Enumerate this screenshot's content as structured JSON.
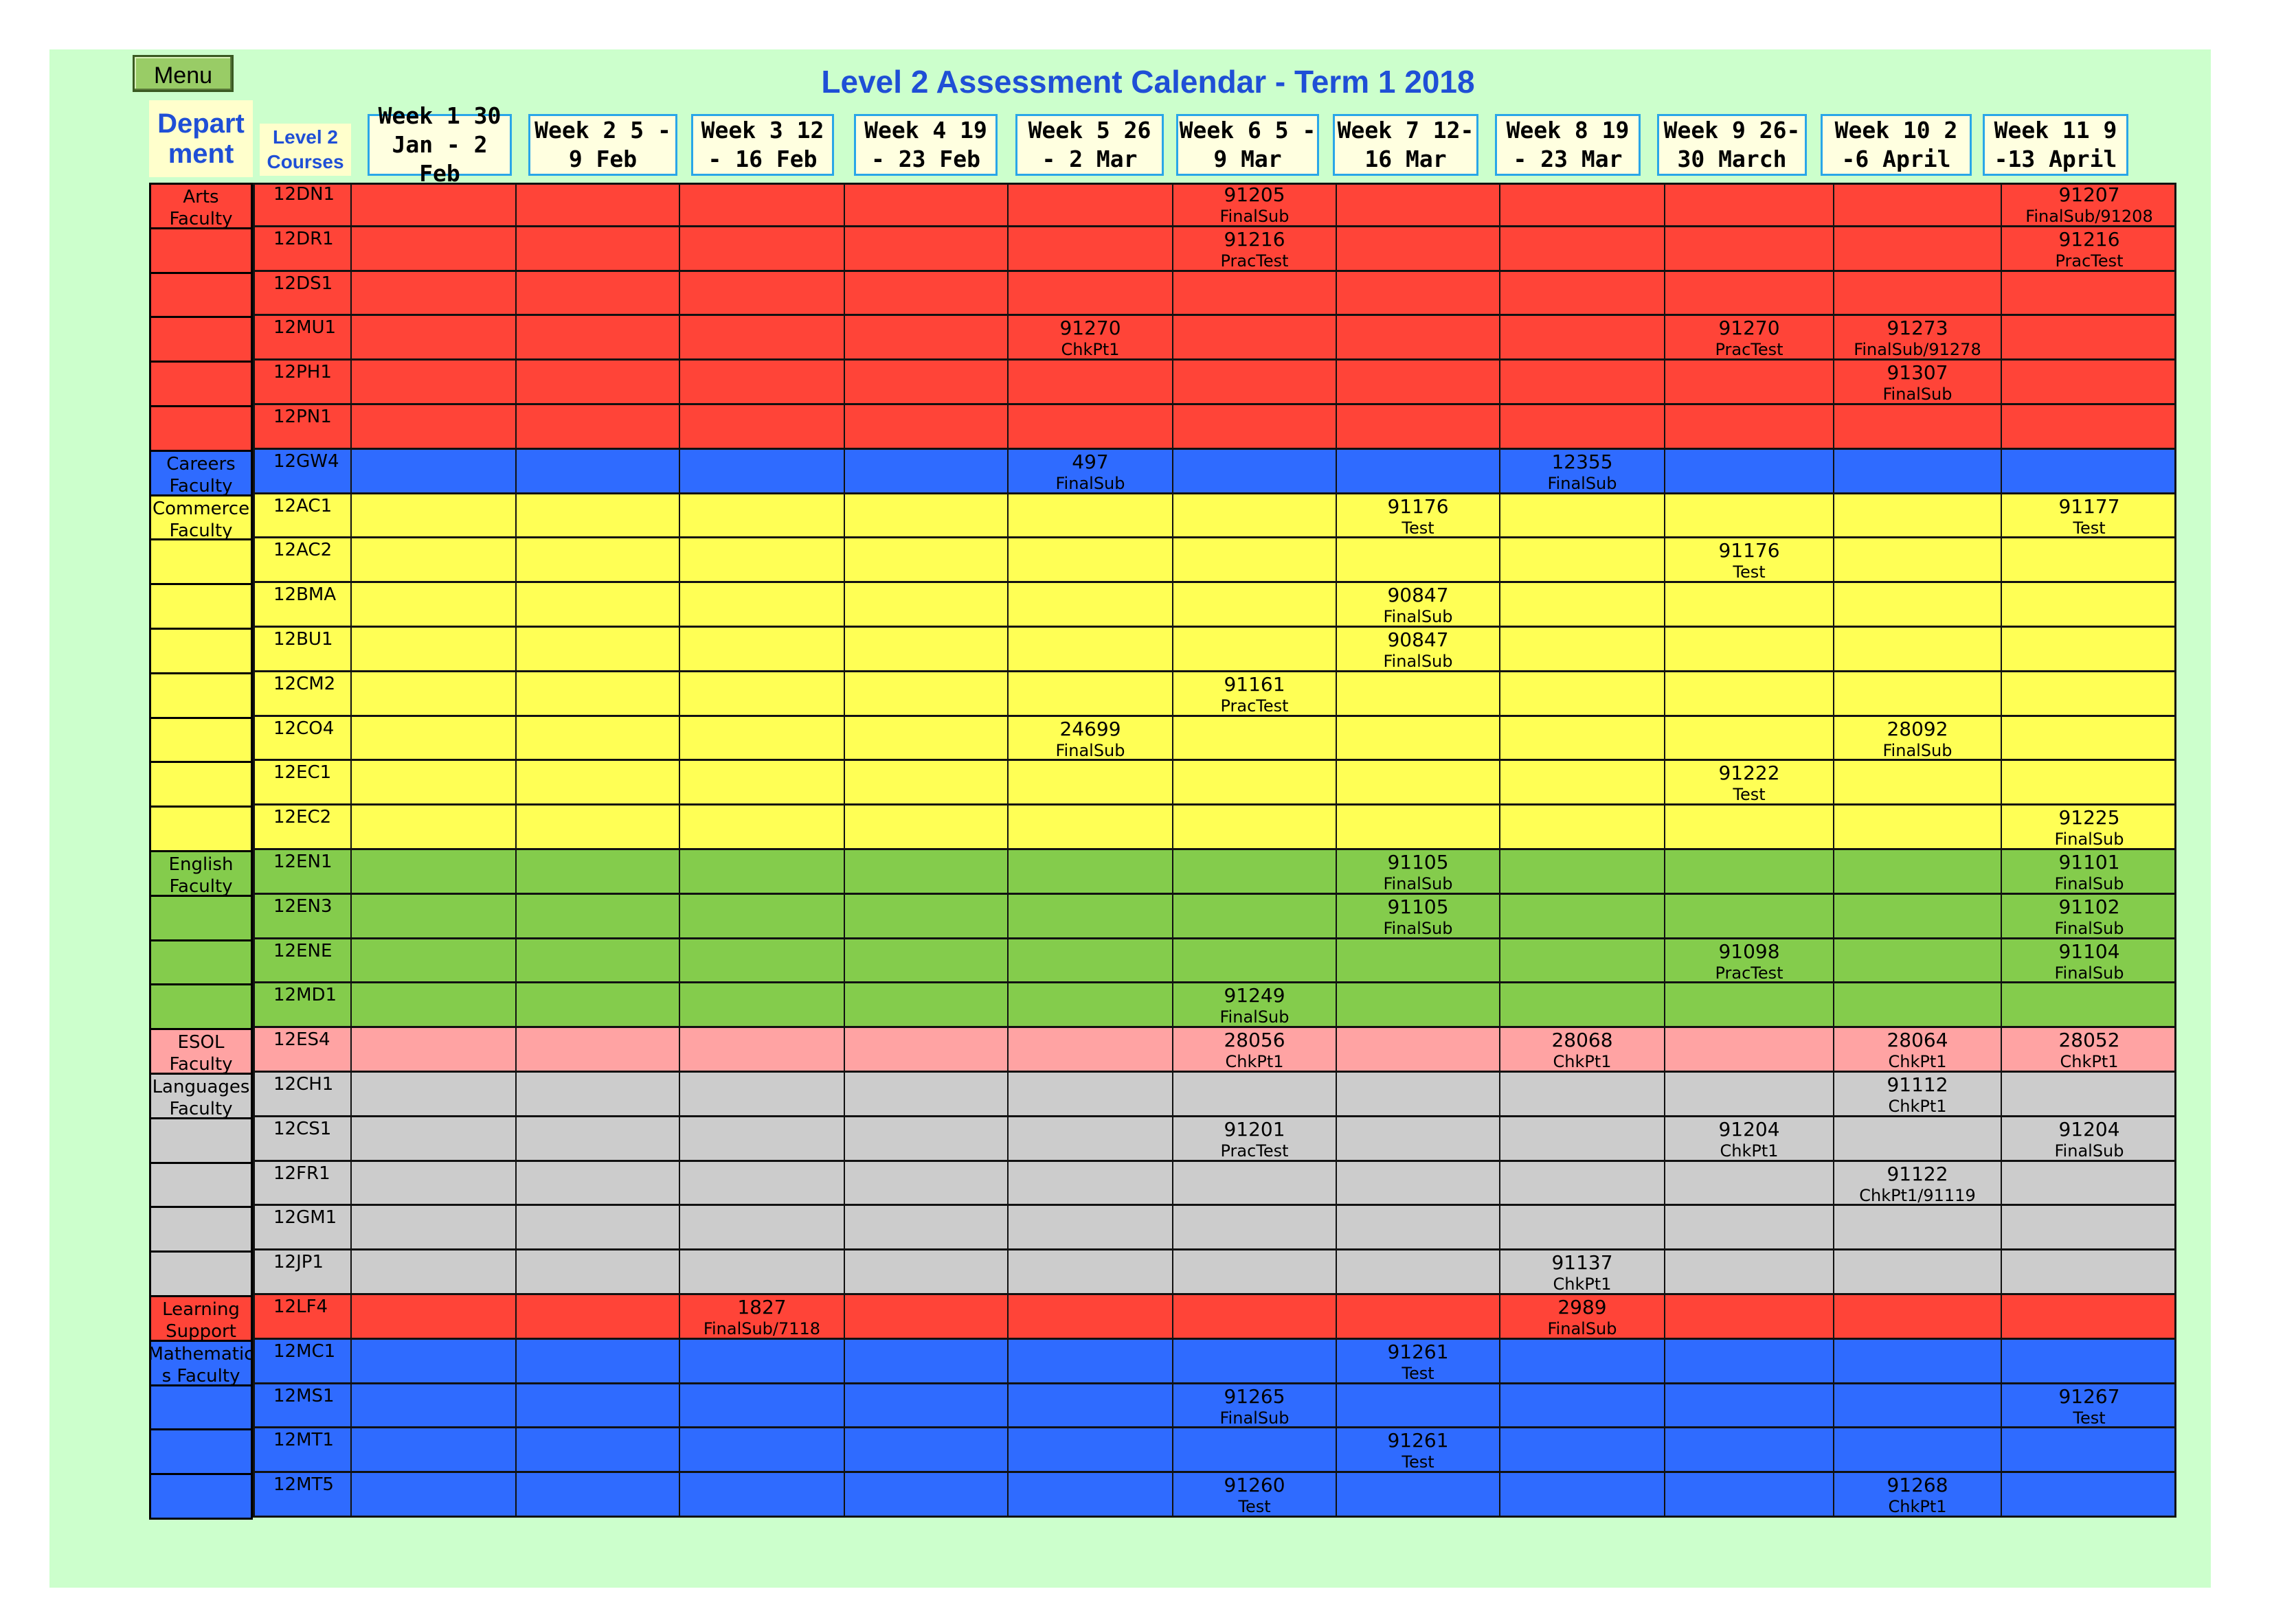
{
  "title": "Level 2 Assessment Calendar - Term 1 2018",
  "menu_label": "Menu",
  "department_header": "Depart ment",
  "courses_header": "Level 2 Courses",
  "weeks": [
    "Week 1 30\nJan - 2 Feb",
    "Week 2 5 -\n9 Feb",
    "Week 3 12\n- 16 Feb",
    "Week 4 19\n- 23 Feb",
    "Week 5 26\n- 2 Mar",
    "Week 6 5 -\n9 Mar",
    "Week 7 12-\n16 Mar",
    "Week 8 19\n- 23 Mar",
    "Week 9 26-\n30 March",
    "Week 10 2\n-6 April",
    "Week 11 9\n-13 April"
  ],
  "colors": {
    "arts": "#ff4438",
    "careers": "#2f6bff",
    "commerce": "#ffff55",
    "english": "#84cc4c",
    "esol": "#ffa3a3",
    "languages": "#cccccc",
    "learning": "#ff4438",
    "maths": "#2f6bff"
  },
  "departments": [
    {
      "name": "Arts Faculty",
      "color_key": "arts",
      "rows": 6
    },
    {
      "name": "Careers Faculty",
      "color_key": "careers",
      "rows": 1
    },
    {
      "name": "Commerce Faculty",
      "color_key": "commerce",
      "rows": 8
    },
    {
      "name": "English Faculty",
      "color_key": "english",
      "rows": 4
    },
    {
      "name": "ESOL Faculty",
      "color_key": "esol",
      "rows": 1
    },
    {
      "name": "Languages Faculty",
      "color_key": "languages",
      "rows": 5
    },
    {
      "name": "Learning Support",
      "color_key": "learning",
      "rows": 1
    },
    {
      "name": "Mathematic s Faculty",
      "color_key": "maths",
      "rows": 4
    }
  ],
  "rows": [
    {
      "course": "12DN1",
      "color_key": "arts",
      "cells": {
        "5": [
          "91205",
          "FinalSub"
        ],
        "10": [
          "91207",
          "FinalSub/91208"
        ]
      }
    },
    {
      "course": "12DR1",
      "color_key": "arts",
      "cells": {
        "5": [
          "91216",
          "PracTest"
        ],
        "10": [
          "91216",
          "PracTest"
        ]
      }
    },
    {
      "course": "12DS1",
      "color_key": "arts",
      "cells": {}
    },
    {
      "course": "12MU1",
      "color_key": "arts",
      "cells": {
        "4": [
          "91270",
          "ChkPt1"
        ],
        "8": [
          "91270",
          "PracTest"
        ],
        "9": [
          "91273",
          "FinalSub/91278"
        ]
      }
    },
    {
      "course": "12PH1",
      "color_key": "arts",
      "cells": {
        "9": [
          "91307",
          "FinalSub"
        ]
      }
    },
    {
      "course": "12PN1",
      "color_key": "arts",
      "cells": {}
    },
    {
      "course": "12GW4",
      "color_key": "careers",
      "cells": {
        "4": [
          "497",
          "FinalSub"
        ],
        "7": [
          "12355",
          "FinalSub"
        ]
      }
    },
    {
      "course": "12AC1",
      "color_key": "commerce",
      "cells": {
        "6": [
          "91176",
          "Test"
        ],
        "10": [
          "91177",
          "Test"
        ]
      }
    },
    {
      "course": "12AC2",
      "color_key": "commerce",
      "cells": {
        "8": [
          "91176",
          "Test"
        ]
      }
    },
    {
      "course": "12BMA",
      "color_key": "commerce",
      "cells": {
        "6": [
          "90847",
          "FinalSub"
        ]
      }
    },
    {
      "course": "12BU1",
      "color_key": "commerce",
      "cells": {
        "6": [
          "90847",
          "FinalSub"
        ]
      }
    },
    {
      "course": "12CM2",
      "color_key": "commerce",
      "cells": {
        "5": [
          "91161",
          "PracTest"
        ]
      }
    },
    {
      "course": "12CO4",
      "color_key": "commerce",
      "cells": {
        "4": [
          "24699",
          "FinalSub"
        ],
        "9": [
          "28092",
          "FinalSub"
        ]
      }
    },
    {
      "course": "12EC1",
      "color_key": "commerce",
      "cells": {
        "8": [
          "91222",
          "Test"
        ]
      }
    },
    {
      "course": "12EC2",
      "color_key": "commerce",
      "cells": {
        "10": [
          "91225",
          "FinalSub"
        ]
      }
    },
    {
      "course": "12EN1",
      "color_key": "english",
      "cells": {
        "6": [
          "91105",
          "FinalSub"
        ],
        "10": [
          "91101",
          "FinalSub"
        ]
      }
    },
    {
      "course": "12EN3",
      "color_key": "english",
      "cells": {
        "6": [
          "91105",
          "FinalSub"
        ],
        "10": [
          "91102",
          "FinalSub"
        ]
      }
    },
    {
      "course": "12ENE",
      "color_key": "english",
      "cells": {
        "8": [
          "91098",
          "PracTest"
        ],
        "10": [
          "91104",
          "FinalSub"
        ]
      }
    },
    {
      "course": "12MD1",
      "color_key": "english",
      "cells": {
        "5": [
          "91249",
          "FinalSub"
        ]
      }
    },
    {
      "course": "12ES4",
      "color_key": "esol",
      "cells": {
        "5": [
          "28056",
          "ChkPt1"
        ],
        "7": [
          "28068",
          "ChkPt1"
        ],
        "9": [
          "28064",
          "ChkPt1"
        ],
        "10": [
          "28052",
          "ChkPt1"
        ]
      }
    },
    {
      "course": "12CH1",
      "color_key": "languages",
      "cells": {
        "9": [
          "91112",
          "ChkPt1"
        ]
      }
    },
    {
      "course": "12CS1",
      "color_key": "languages",
      "cells": {
        "5": [
          "91201",
          "PracTest"
        ],
        "8": [
          "91204",
          "ChkPt1"
        ],
        "10": [
          "91204",
          "FinalSub"
        ]
      }
    },
    {
      "course": "12FR1",
      "color_key": "languages",
      "cells": {
        "9": [
          "91122",
          "ChkPt1/91119"
        ]
      }
    },
    {
      "course": "12GM1",
      "color_key": "languages",
      "cells": {}
    },
    {
      "course": "12JP1",
      "color_key": "languages",
      "cells": {
        "7": [
          "91137",
          "ChkPt1"
        ]
      }
    },
    {
      "course": "12LF4",
      "color_key": "learning",
      "cells": {
        "2": [
          "1827",
          "FinalSub/7118"
        ],
        "7": [
          "2989",
          "FinalSub"
        ]
      }
    },
    {
      "course": "12MC1",
      "color_key": "maths",
      "cells": {
        "6": [
          "91261",
          "Test"
        ]
      }
    },
    {
      "course": "12MS1",
      "color_key": "maths",
      "cells": {
        "5": [
          "91265",
          "FinalSub"
        ],
        "10": [
          "91267",
          "Test"
        ]
      }
    },
    {
      "course": "12MT1",
      "color_key": "maths",
      "cells": {
        "6": [
          "91261",
          "Test"
        ]
      }
    },
    {
      "course": "12MT5",
      "color_key": "maths",
      "cells": {
        "5": [
          "91260",
          "Test"
        ],
        "9": [
          "91268",
          "ChkPt1"
        ]
      }
    }
  ]
}
